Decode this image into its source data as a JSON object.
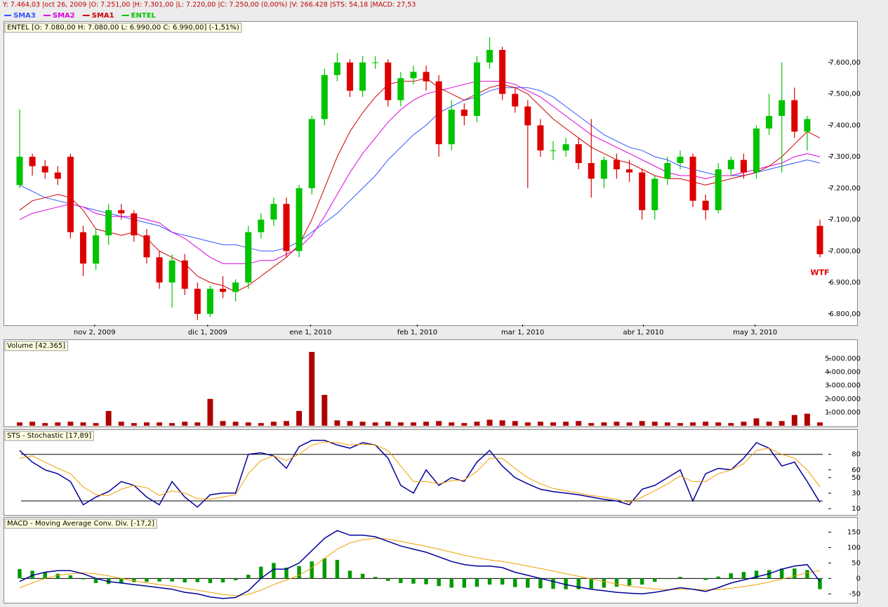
{
  "status_bar": "Y: 7.464,03 |oct 26, 2009 |O: 7.251,00 |H: 7.301,00 |L: 7.220,00 |C: 7.250,00 (0,00%) |V: 266.428 |STS: 54,18 |MACD: 27,53",
  "chart_data": [
    {
      "type": "candlestick",
      "title": "ENTEL [O: 7.080,00  H: 7.080,00  L: 6.990,00  C: 6.990,00] (-1,51%)",
      "name": "ENTEL",
      "up_color": "#00c400",
      "down_color": "#dd0000",
      "annotation": "WTF",
      "open": [
        7210,
        7300,
        7270,
        7250,
        7300,
        7060,
        6960,
        7050,
        7130,
        7120,
        7050,
        6980,
        6900,
        6970,
        6880,
        6800,
        6880,
        6870,
        6900,
        7060,
        7100,
        7150,
        7000,
        7200,
        7420,
        7560,
        7600,
        7510,
        7600,
        7600,
        7480,
        7550,
        7570,
        7540,
        7340,
        7450,
        7430,
        7600,
        7640,
        7500,
        7460,
        7400,
        7320,
        7320,
        7340,
        7280,
        7230,
        7290,
        7260,
        7250,
        7130,
        7230,
        7280,
        7300,
        7160,
        7130,
        7260,
        7290,
        7250,
        7390,
        7430,
        7480,
        7380,
        7080
      ],
      "high": [
        7450,
        7310,
        7290,
        7270,
        7310,
        7080,
        7070,
        7150,
        7150,
        7130,
        7070,
        7000,
        6990,
        6990,
        6900,
        6890,
        6920,
        6910,
        7080,
        7120,
        7170,
        7170,
        7210,
        7430,
        7580,
        7630,
        7610,
        7620,
        7620,
        7610,
        7570,
        7590,
        7590,
        7560,
        7480,
        7470,
        7620,
        7680,
        7650,
        7520,
        7480,
        7420,
        7350,
        7360,
        7360,
        7420,
        7300,
        7310,
        7290,
        7260,
        7240,
        7300,
        7320,
        7310,
        7180,
        7280,
        7300,
        7310,
        7400,
        7500,
        7600,
        7520,
        7430,
        7100
      ],
      "low": [
        7200,
        7240,
        7230,
        7210,
        7040,
        6920,
        6940,
        7020,
        7100,
        7030,
        6960,
        6880,
        6820,
        6860,
        6780,
        6790,
        6850,
        6840,
        6880,
        7040,
        7080,
        6980,
        6980,
        7180,
        7400,
        7540,
        7490,
        7490,
        7580,
        7460,
        7460,
        7530,
        7510,
        7300,
        7320,
        7400,
        7410,
        7580,
        7480,
        7440,
        7200,
        7300,
        7290,
        7300,
        7260,
        7170,
        7200,
        7230,
        7220,
        7100,
        7100,
        7210,
        7260,
        7140,
        7100,
        7120,
        7240,
        7230,
        7230,
        7370,
        7250,
        7360,
        7320,
        6980
      ],
      "close": [
        7300,
        7270,
        7250,
        7230,
        7060,
        6960,
        7050,
        7130,
        7120,
        7050,
        6980,
        6900,
        6970,
        6880,
        6800,
        6880,
        6870,
        6900,
        7060,
        7100,
        7150,
        7000,
        7200,
        7420,
        7560,
        7600,
        7510,
        7600,
        7600,
        7480,
        7550,
        7570,
        7540,
        7340,
        7450,
        7430,
        7600,
        7640,
        7500,
        7460,
        7400,
        7320,
        7320,
        7340,
        7280,
        7230,
        7290,
        7260,
        7250,
        7130,
        7230,
        7280,
        7300,
        7160,
        7130,
        7260,
        7290,
        7250,
        7390,
        7430,
        7480,
        7380,
        7420,
        6990
      ],
      "series": [
        {
          "name": "SMA3",
          "color": "#3355ff",
          "values": [
            7210,
            7190,
            7170,
            7160,
            7150,
            7140,
            7130,
            7120,
            7110,
            7100,
            7090,
            7080,
            7060,
            7050,
            7040,
            7030,
            7020,
            7020,
            7010,
            7000,
            7000,
            7010,
            7030,
            7060,
            7090,
            7120,
            7160,
            7200,
            7240,
            7290,
            7330,
            7370,
            7400,
            7440,
            7460,
            7480,
            7490,
            7510,
            7520,
            7520,
            7520,
            7510,
            7490,
            7460,
            7430,
            7400,
            7370,
            7350,
            7330,
            7320,
            7300,
            7290,
            7270,
            7260,
            7250,
            7240,
            7240,
            7240,
            7250,
            7260,
            7270,
            7280,
            7290,
            7280
          ]
        },
        {
          "name": "SMA2",
          "color": "#dd00dd",
          "values": [
            7100,
            7120,
            7130,
            7140,
            7150,
            7140,
            7120,
            7110,
            7110,
            7110,
            7100,
            7090,
            7060,
            7040,
            7010,
            6980,
            6960,
            6960,
            6960,
            6970,
            6970,
            6990,
            7010,
            7050,
            7110,
            7180,
            7250,
            7310,
            7360,
            7410,
            7450,
            7480,
            7500,
            7510,
            7520,
            7530,
            7540,
            7540,
            7540,
            7530,
            7510,
            7490,
            7460,
            7430,
            7400,
            7370,
            7350,
            7330,
            7310,
            7290,
            7270,
            7250,
            7240,
            7240,
            7230,
            7240,
            7240,
            7250,
            7260,
            7270,
            7280,
            7300,
            7310,
            7300
          ]
        },
        {
          "name": "SMA1",
          "color": "#cc0000",
          "values": [
            7130,
            7160,
            7170,
            7180,
            7170,
            7130,
            7070,
            7060,
            7050,
            7060,
            7040,
            7000,
            6980,
            6960,
            6920,
            6900,
            6890,
            6870,
            6890,
            6920,
            6950,
            6980,
            7020,
            7100,
            7200,
            7300,
            7380,
            7440,
            7490,
            7530,
            7540,
            7540,
            7550,
            7520,
            7500,
            7480,
            7500,
            7520,
            7530,
            7520,
            7500,
            7460,
            7420,
            7390,
            7360,
            7330,
            7310,
            7290,
            7280,
            7260,
            7240,
            7230,
            7230,
            7220,
            7210,
            7220,
            7230,
            7240,
            7250,
            7270,
            7300,
            7340,
            7380,
            7360
          ]
        }
      ],
      "ylim": [
        6766,
        7725
      ],
      "yticks": [
        {
          "value": 6800,
          "label": "6.800,00"
        },
        {
          "value": 6900,
          "label": "6.900,00"
        },
        {
          "value": 7000,
          "label": "7.000,00"
        },
        {
          "value": 7100,
          "label": "7.100,00"
        },
        {
          "value": 7200,
          "label": "7.200,00"
        },
        {
          "value": 7300,
          "label": "7.300,00"
        },
        {
          "value": 7400,
          "label": "7.400,00"
        },
        {
          "value": 7500,
          "label": "7.500,00"
        },
        {
          "value": 7600,
          "label": "7.600,00"
        }
      ],
      "xticks": [
        {
          "value": 5.9,
          "label": "nov 2, 2009"
        },
        {
          "value": 14.8,
          "label": "dic 1, 2009"
        },
        {
          "value": 22.9,
          "label": "ene 1, 2010"
        },
        {
          "value": 31.3,
          "label": "feb 1, 2010"
        },
        {
          "value": 39.6,
          "label": "mar 1, 2010"
        },
        {
          "value": 49.1,
          "label": "abr 1, 2010"
        },
        {
          "value": 57.9,
          "label": "may 3, 2010"
        }
      ]
    },
    {
      "type": "bar",
      "title": "Volume [42.365]",
      "color": "#b00000",
      "values": [
        250000,
        300000,
        200000,
        250000,
        300000,
        250000,
        200000,
        1100000,
        300000,
        200000,
        250000,
        250000,
        200000,
        300000,
        250000,
        2000000,
        350000,
        300000,
        250000,
        200000,
        300000,
        350000,
        1100000,
        5500000,
        2300000,
        400000,
        350000,
        300000,
        250000,
        300000,
        250000,
        250000,
        300000,
        350000,
        250000,
        200000,
        300000,
        450000,
        400000,
        350000,
        250000,
        300000,
        250000,
        300000,
        350000,
        200000,
        250000,
        300000,
        250000,
        350000,
        300000,
        250000,
        200000,
        250000,
        300000,
        250000,
        200000,
        300000,
        550000,
        300000,
        350000,
        800000,
        900000,
        250000
      ],
      "ylim": [
        0,
        6280000
      ],
      "yticks": [
        {
          "value": 1000000,
          "label": "1.000.000"
        },
        {
          "value": 2000000,
          "label": "2.000.000"
        },
        {
          "value": 3000000,
          "label": "3.000.000"
        },
        {
          "value": 4000000,
          "label": "4.000.000"
        },
        {
          "value": 5000000,
          "label": "5.000.000"
        }
      ]
    },
    {
      "type": "line",
      "title": "STS - Stochastic [17,89]",
      "levels": [
        20,
        80
      ],
      "series": [
        {
          "color": "#000099",
          "values": [
            85,
            70,
            60,
            55,
            45,
            15,
            25,
            32,
            45,
            40,
            25,
            15,
            45,
            25,
            12,
            28,
            30,
            30,
            80,
            82,
            78,
            62,
            90,
            98,
            98,
            92,
            88,
            95,
            92,
            75,
            40,
            30,
            60,
            40,
            50,
            45,
            70,
            85,
            65,
            50,
            42,
            35,
            32,
            30,
            28,
            25,
            22,
            20,
            15,
            35,
            40,
            50,
            60,
            20,
            55,
            62,
            60,
            75,
            95,
            88,
            65,
            70,
            45,
            18
          ]
        },
        {
          "color": "#f0a000",
          "values": [
            75,
            78,
            70,
            62,
            55,
            38,
            28,
            27,
            35,
            40,
            37,
            27,
            33,
            30,
            23,
            22,
            25,
            28,
            55,
            72,
            78,
            72,
            80,
            92,
            96,
            95,
            92,
            93,
            92,
            85,
            65,
            45,
            45,
            42,
            46,
            47,
            58,
            75,
            75,
            62,
            50,
            42,
            36,
            33,
            30,
            27,
            25,
            22,
            18,
            25,
            33,
            42,
            52,
            45,
            45,
            55,
            60,
            68,
            85,
            88,
            80,
            75,
            60,
            38
          ]
        }
      ],
      "ylim": [
        2.8,
        109.6
      ],
      "yticks": [
        10,
        30,
        50,
        60,
        80
      ]
    },
    {
      "type": "combo",
      "title": "MACD - Moving Average Conv. Div. [-17,2]",
      "levels": [
        0
      ],
      "series": [
        {
          "type": "bar",
          "color": "#009900",
          "values": [
            30,
            25,
            20,
            15,
            10,
            -3,
            -15,
            -18,
            -15,
            -12,
            -11,
            -10,
            -10,
            -13,
            -12,
            -15,
            -13,
            -6,
            12,
            38,
            50,
            35,
            40,
            55,
            65,
            60,
            25,
            15,
            5,
            -8,
            -15,
            -17,
            -19,
            -25,
            -30,
            -30,
            -27,
            -20,
            -20,
            -28,
            -30,
            -32,
            -34,
            -35,
            -35,
            -33,
            -30,
            -27,
            -23,
            -20,
            -11,
            -2,
            5,
            0,
            -5,
            6,
            17,
            21,
            25,
            27,
            32,
            32,
            27,
            -35
          ]
        },
        {
          "type": "line",
          "color": "#f0a000",
          "values": [
            -30,
            -15,
            0,
            10,
            15,
            18,
            15,
            8,
            0,
            -8,
            -14,
            -20,
            -25,
            -32,
            -38,
            -45,
            -52,
            -56,
            -52,
            -38,
            -20,
            -5,
            10,
            35,
            65,
            95,
            115,
            125,
            130,
            128,
            120,
            112,
            104,
            95,
            85,
            75,
            67,
            60,
            55,
            48,
            40,
            32,
            24,
            15,
            7,
            -2,
            -10,
            -18,
            -25,
            -30,
            -34,
            -36,
            -35,
            -35,
            -37,
            -36,
            -32,
            -26,
            -20,
            -12,
            -2,
            8,
            18,
            25
          ]
        },
        {
          "type": "line",
          "color": "#000099",
          "values": [
            -10,
            10,
            20,
            25,
            25,
            15,
            0,
            -10,
            -15,
            -20,
            -25,
            -30,
            -35,
            -45,
            -50,
            -60,
            -65,
            -62,
            -40,
            0,
            30,
            30,
            50,
            90,
            130,
            155,
            140,
            140,
            135,
            120,
            105,
            95,
            85,
            70,
            55,
            45,
            40,
            40,
            35,
            20,
            10,
            0,
            -10,
            -20,
            -28,
            -35,
            -40,
            -45,
            -48,
            -50,
            -45,
            -38,
            -30,
            -35,
            -42,
            -30,
            -15,
            -5,
            5,
            15,
            30,
            40,
            45,
            -10
          ]
        }
      ],
      "ylim": [
        -76.7,
        192
      ],
      "yticks": [
        -50,
        0,
        50,
        100,
        150
      ]
    }
  ]
}
